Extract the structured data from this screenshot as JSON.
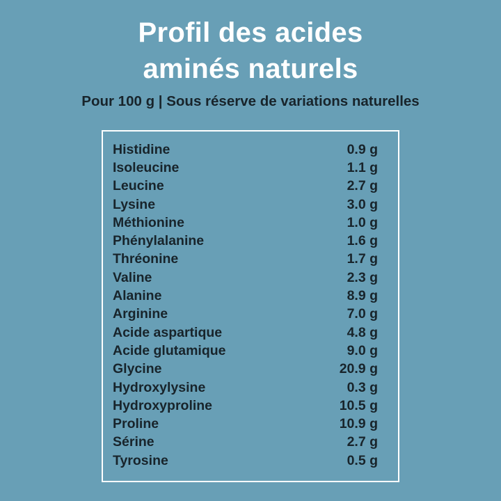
{
  "theme": {
    "background_color": "#689FB6",
    "title_color": "#FFFFFF",
    "text_color": "#18242B",
    "table_border_color": "#FFFFFF"
  },
  "header": {
    "title_line1": "Profil des acides",
    "title_line2": "aminés naturels",
    "subtitle": "Pour 100 g | Sous réserve de variations naturelles"
  },
  "table": {
    "rows": [
      {
        "name": "Histidine",
        "value": "0.9 g"
      },
      {
        "name": "Isoleucine",
        "value": "1.1 g"
      },
      {
        "name": "Leucine",
        "value": "2.7 g"
      },
      {
        "name": "Lysine",
        "value": "3.0 g"
      },
      {
        "name": "Méthionine",
        "value": "1.0 g"
      },
      {
        "name": "Phénylalanine",
        "value": "1.6 g"
      },
      {
        "name": "Thréonine",
        "value": "1.7 g"
      },
      {
        "name": "Valine",
        "value": "2.3 g"
      },
      {
        "name": "Alanine",
        "value": "8.9 g"
      },
      {
        "name": "Arginine",
        "value": "7.0 g"
      },
      {
        "name": "Acide aspartique",
        "value": "4.8 g"
      },
      {
        "name": "Acide glutamique",
        "value": "9.0 g"
      },
      {
        "name": "Glycine",
        "value": "20.9 g"
      },
      {
        "name": "Hydroxylysine",
        "value": "0.3 g"
      },
      {
        "name": "Hydroxyproline",
        "value": "10.5 g"
      },
      {
        "name": "Proline",
        "value": "10.9 g"
      },
      {
        "name": "Sérine",
        "value": "2.7 g"
      },
      {
        "name": "Tyrosine",
        "value": "0.5 g"
      }
    ]
  },
  "chart_data": {
    "type": "table",
    "title": "Profil des acides aminés naturels",
    "subtitle": "Pour 100 g | Sous réserve de variations naturelles",
    "unit": "g",
    "categories": [
      "Histidine",
      "Isoleucine",
      "Leucine",
      "Lysine",
      "Méthionine",
      "Phénylalanine",
      "Thréonine",
      "Valine",
      "Alanine",
      "Arginine",
      "Acide aspartique",
      "Acide glutamique",
      "Glycine",
      "Hydroxylysine",
      "Hydroxyproline",
      "Proline",
      "Sérine",
      "Tyrosine"
    ],
    "values": [
      0.9,
      1.1,
      2.7,
      3.0,
      1.0,
      1.6,
      1.7,
      2.3,
      8.9,
      7.0,
      4.8,
      9.0,
      20.9,
      0.3,
      10.5,
      10.9,
      2.7,
      0.5
    ]
  }
}
